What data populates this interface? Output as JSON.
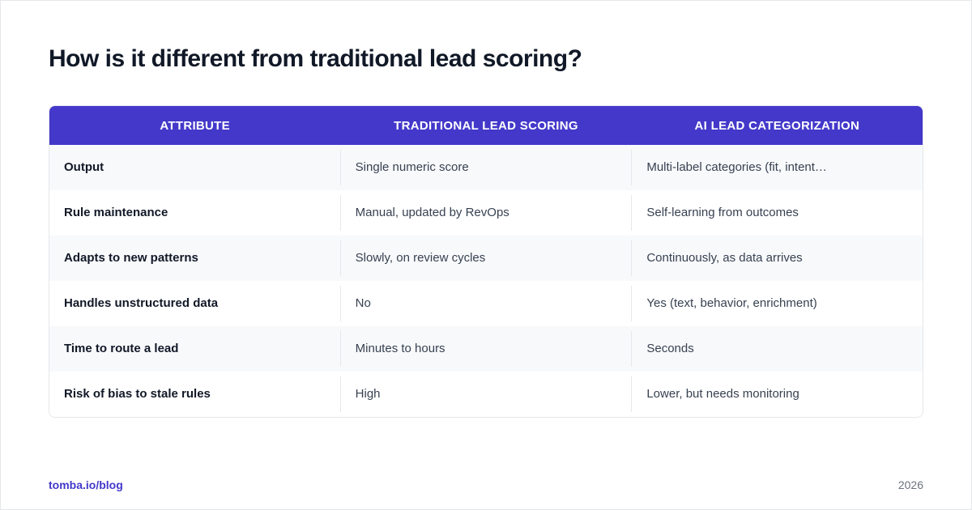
{
  "header": {
    "title": "How is it different from traditional lead scoring?"
  },
  "table": {
    "columns": [
      "ATTRIBUTE",
      "TRADITIONAL LEAD SCORING",
      "AI LEAD CATEGORIZATION"
    ],
    "rows": [
      [
        "Output",
        "Single numeric score",
        "Multi-label categories (fit, intent…"
      ],
      [
        "Rule maintenance",
        "Manual, updated by RevOps",
        "Self-learning from outcomes"
      ],
      [
        "Adapts to new patterns",
        "Slowly, on review cycles",
        "Continuously, as data arrives"
      ],
      [
        "Handles unstructured data",
        "No",
        "Yes (text, behavior, enrichment)"
      ],
      [
        "Time to route a lead",
        "Minutes to hours",
        "Seconds"
      ],
      [
        "Risk of bias to stale rules",
        "High",
        "Lower, but needs monitoring"
      ]
    ]
  },
  "footer": {
    "source": "tomba.io/blog",
    "year": "2026"
  }
}
